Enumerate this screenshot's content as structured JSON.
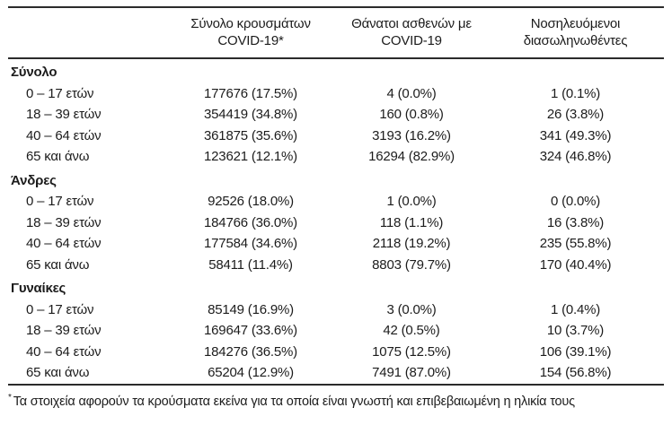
{
  "page": {
    "background": "#ffffff",
    "text_color": "#1c1c1c",
    "rule_color": "#2b2b2b"
  },
  "table": {
    "headers": [
      {
        "line1": "Σύνολο κρουσμάτων",
        "line2": "COVID-19*"
      },
      {
        "line1": "Θάνατοι ασθενών με",
        "line2": "COVID-19"
      },
      {
        "line1": "Νοσηλευόμενοι",
        "line2": "διασωληνωθέντες"
      }
    ],
    "sections": [
      {
        "label": "Σύνολο",
        "rows": [
          {
            "label": "0 – 17 ετών",
            "cases": "177676 (17.5%)",
            "deaths": "4 (0.0%)",
            "intubated": "1 (0.1%)"
          },
          {
            "label": "18 – 39 ετών",
            "cases": "354419 (34.8%)",
            "deaths": "160 (0.8%)",
            "intubated": "26 (3.8%)"
          },
          {
            "label": "40 – 64 ετών",
            "cases": "361875 (35.6%)",
            "deaths": "3193 (16.2%)",
            "intubated": "341 (49.3%)"
          },
          {
            "label": "65 και άνω",
            "cases": "123621 (12.1%)",
            "deaths": "16294 (82.9%)",
            "intubated": "324 (46.8%)"
          }
        ]
      },
      {
        "label": "Άνδρες",
        "rows": [
          {
            "label": "0 – 17 ετών",
            "cases": "92526 (18.0%)",
            "deaths": "1 (0.0%)",
            "intubated": "0 (0.0%)"
          },
          {
            "label": "18 – 39 ετών",
            "cases": "184766 (36.0%)",
            "deaths": "118 (1.1%)",
            "intubated": "16 (3.8%)"
          },
          {
            "label": "40 – 64 ετών",
            "cases": "177584 (34.6%)",
            "deaths": "2118 (19.2%)",
            "intubated": "235 (55.8%)"
          },
          {
            "label": "65 και άνω",
            "cases": "58411 (11.4%)",
            "deaths": "8803 (79.7%)",
            "intubated": "170 (40.4%)"
          }
        ]
      },
      {
        "label": "Γυναίκες",
        "rows": [
          {
            "label": "0 – 17 ετών",
            "cases": "85149 (16.9%)",
            "deaths": "3 (0.0%)",
            "intubated": "1 (0.4%)"
          },
          {
            "label": "18 – 39 ετών",
            "cases": "169647 (33.6%)",
            "deaths": "42 (0.5%)",
            "intubated": "10 (3.7%)"
          },
          {
            "label": "40 – 64 ετών",
            "cases": "184276 (36.5%)",
            "deaths": "1075 (12.5%)",
            "intubated": "106 (39.1%)"
          },
          {
            "label": "65 και άνω",
            "cases": "65204 (12.9%)",
            "deaths": "7491 (87.0%)",
            "intubated": "154 (56.8%)"
          }
        ]
      }
    ],
    "footnote_marker": "*",
    "footnote_text": "Τα στοιχεία αφορούν τα κρούσματα εκείνα για τα οποία είναι γνωστή και επιβεβαιωμένη η ηλικία τους"
  }
}
